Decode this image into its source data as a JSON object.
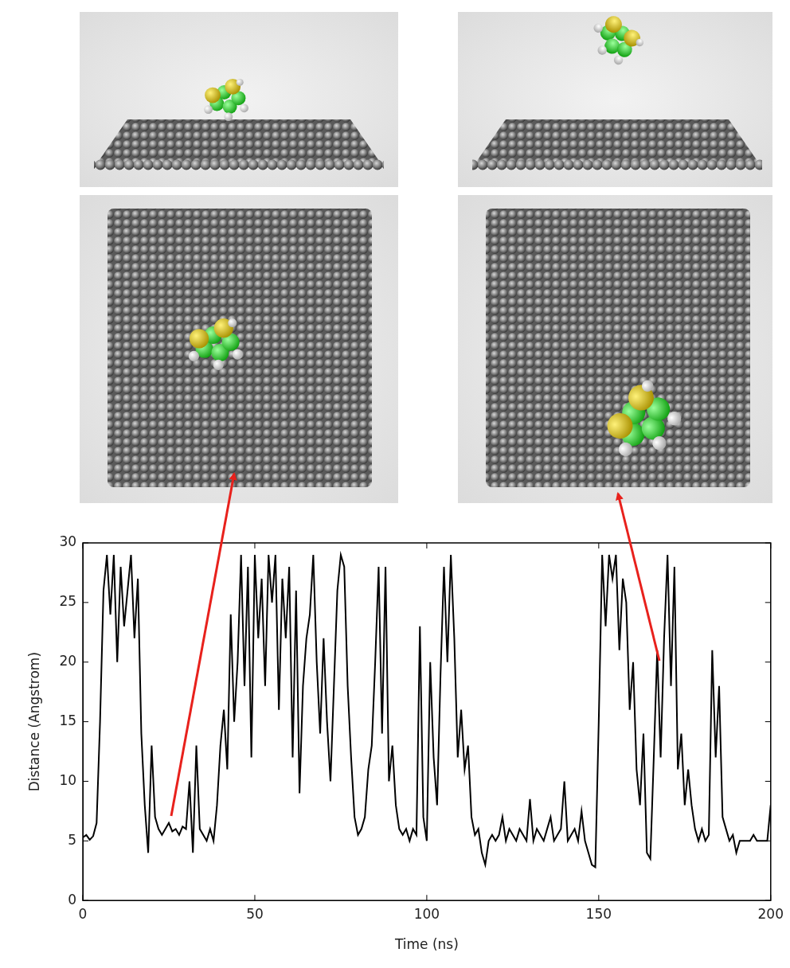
{
  "chart_data": {
    "type": "line",
    "x_label": "Time (ns)",
    "y_label": "Distance (Angstrom)",
    "x": [
      0,
      1,
      2,
      3,
      4,
      5,
      6,
      7,
      8,
      9,
      10,
      11,
      12,
      13,
      14,
      15,
      16,
      17,
      18,
      19,
      20,
      21,
      22,
      23,
      24,
      25,
      26,
      27,
      28,
      29,
      30,
      31,
      32,
      33,
      34,
      35,
      36,
      37,
      38,
      39,
      40,
      41,
      42,
      43,
      44,
      45,
      46,
      47,
      48,
      49,
      50,
      51,
      52,
      53,
      54,
      55,
      56,
      57,
      58,
      59,
      60,
      61,
      62,
      63,
      64,
      65,
      66,
      67,
      68,
      69,
      70,
      71,
      72,
      73,
      74,
      75,
      76,
      77,
      78,
      79,
      80,
      81,
      82,
      83,
      84,
      85,
      86,
      87,
      88,
      89,
      90,
      91,
      92,
      93,
      94,
      95,
      96,
      97,
      98,
      99,
      100,
      101,
      102,
      103,
      104,
      105,
      106,
      107,
      108,
      109,
      110,
      111,
      112,
      113,
      114,
      115,
      116,
      117,
      118,
      119,
      120,
      121,
      122,
      123,
      124,
      125,
      126,
      127,
      128,
      129,
      130,
      131,
      132,
      133,
      134,
      135,
      136,
      137,
      138,
      139,
      140,
      141,
      142,
      143,
      144,
      145,
      146,
      147,
      148,
      149,
      150,
      151,
      152,
      153,
      154,
      155,
      156,
      157,
      158,
      159,
      160,
      161,
      162,
      163,
      164,
      165,
      166,
      167,
      168,
      169,
      170,
      171,
      172,
      173,
      174,
      175,
      176,
      177,
      178,
      179,
      180,
      181,
      182,
      183,
      184,
      185,
      186,
      187,
      188,
      189,
      190,
      191,
      192,
      193,
      194,
      195,
      196,
      197,
      198,
      199,
      200
    ],
    "values": [
      5.3,
      5.5,
      5.1,
      5.4,
      6.5,
      15,
      26,
      29,
      24,
      29,
      20,
      28,
      23,
      26,
      29,
      22,
      27,
      14,
      8,
      4,
      13,
      7,
      6,
      5.5,
      6,
      6.5,
      5.8,
      6,
      5.5,
      6.2,
      6,
      10,
      4,
      13,
      6,
      5.5,
      5,
      6,
      5,
      8,
      13,
      16,
      11,
      24,
      15,
      20,
      29,
      18,
      28,
      12,
      29,
      22,
      27,
      18,
      29,
      25,
      29,
      16,
      27,
      22,
      28,
      12,
      26,
      9,
      18,
      22,
      24,
      29,
      20,
      14,
      22,
      15,
      10,
      18,
      26,
      29,
      28,
      18,
      12,
      7,
      5.5,
      6,
      7,
      11,
      13,
      20,
      28,
      14,
      28,
      10,
      13,
      8,
      6,
      5.5,
      6,
      5,
      6,
      5.5,
      23,
      7,
      5,
      20,
      12,
      8,
      19,
      28,
      20,
      29,
      22,
      12,
      16,
      11,
      13,
      7,
      5.5,
      6,
      4,
      3,
      5,
      5.5,
      5,
      5.5,
      7,
      5,
      6,
      5.5,
      5,
      6,
      5.5,
      5,
      8.5,
      5,
      6,
      5.5,
      5,
      6,
      7,
      5,
      5.5,
      6,
      10,
      5,
      5.5,
      6,
      5,
      7.5,
      5,
      4,
      3,
      2.8,
      15,
      29,
      23,
      29,
      27,
      29,
      21,
      27,
      25,
      16,
      20,
      11,
      8,
      14,
      4,
      3.5,
      12,
      21,
      12,
      22,
      29,
      18,
      28,
      11,
      14,
      8,
      11,
      8,
      6,
      5,
      6,
      5,
      5.5,
      21,
      12,
      18,
      7,
      6,
      5,
      5.5,
      4,
      5,
      5,
      5,
      5,
      5.5,
      5,
      5,
      5,
      5,
      8
    ],
    "color": "#000000",
    "xlim": [
      0,
      200
    ],
    "xticks": [
      0,
      50,
      100,
      150,
      200
    ],
    "ylim": [
      0,
      30
    ],
    "yticks": [
      0,
      5,
      10,
      15,
      20,
      25,
      30
    ],
    "grid": false
  }
}
